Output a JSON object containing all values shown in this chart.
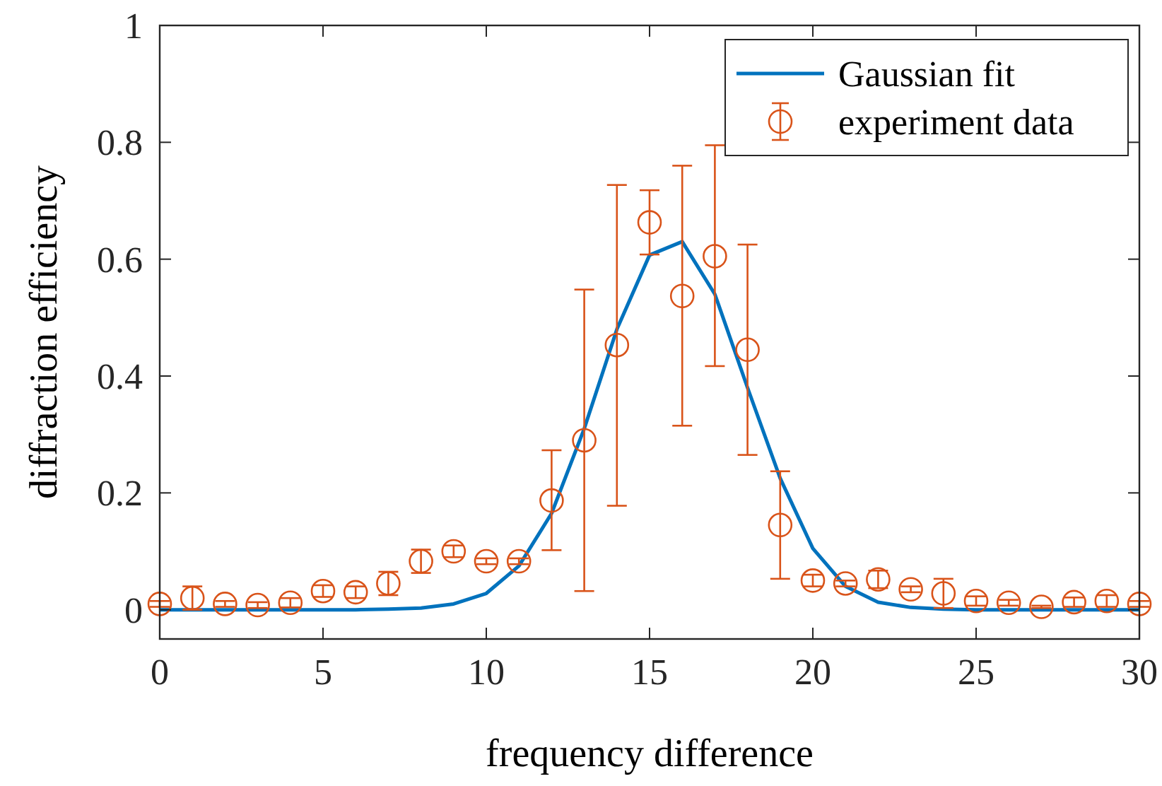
{
  "chart_data": {
    "type": "scatter",
    "xlabel": "frequency difference",
    "ylabel": "diffraction efficiency",
    "xlim": [
      0,
      30
    ],
    "xticks": [
      0,
      5,
      10,
      15,
      20,
      25,
      30
    ],
    "ylim": [
      -0.05,
      1
    ],
    "yticks": [
      0,
      0.2,
      0.4,
      0.6,
      0.8,
      1
    ],
    "legend": "top right",
    "grid": false,
    "series": [
      {
        "name": "Gaussian fit",
        "type": "line",
        "color": "#0072bd",
        "marker": "none",
        "line_style": "solid",
        "x": [
          0,
          1,
          2,
          3,
          4,
          5,
          6,
          7,
          8,
          9,
          10,
          11,
          12,
          13,
          14,
          15,
          16,
          17,
          18,
          19,
          20,
          21,
          22,
          23,
          24,
          25,
          26,
          27,
          28,
          29,
          30
        ],
        "values": [
          0,
          0,
          0,
          0,
          0,
          0,
          0,
          0.001,
          0.003,
          0.01,
          0.028,
          0.075,
          0.165,
          0.31,
          0.48,
          0.607,
          0.63,
          0.54,
          0.38,
          0.225,
          0.105,
          0.04,
          0.013,
          0.004,
          0.001,
          0,
          0,
          0,
          0,
          0,
          0
        ]
      },
      {
        "name": "experiment data",
        "color": "#d95319",
        "marker": "circle",
        "x": [
          0,
          1,
          2,
          3,
          4,
          5,
          6,
          7,
          8,
          9,
          10,
          11,
          12,
          13,
          14,
          15,
          16,
          17,
          18,
          19,
          20,
          21,
          22,
          23,
          24,
          25,
          26,
          27,
          28,
          29,
          30
        ],
        "values": [
          0.01,
          0.02,
          0.01,
          0.008,
          0.012,
          0.032,
          0.03,
          0.045,
          0.083,
          0.1,
          0.083,
          0.083,
          0.187,
          0.29,
          0.453,
          0.663,
          0.537,
          0.605,
          0.445,
          0.145,
          0.05,
          0.045,
          0.052,
          0.035,
          0.028,
          0.015,
          0.012,
          0.005,
          0.013,
          0.015,
          0.01
        ],
        "errors": [
          0.005,
          0.02,
          0.005,
          0.005,
          0.008,
          0.01,
          0.01,
          0.02,
          0.02,
          0.01,
          0.005,
          0.005,
          [
            0.102,
            0.273
          ],
          [
            0.032,
            0.548
          ],
          [
            0.178,
            0.727
          ],
          [
            0.608,
            0.718
          ],
          [
            0.315,
            0.76
          ],
          [
            0.417,
            0.795
          ],
          [
            0.265,
            0.625
          ],
          [
            0.053,
            0.237
          ],
          0.01,
          0.005,
          0.015,
          0.005,
          0.025,
          0.008,
          0.005,
          0.002,
          0.008,
          0.01,
          0.005
        ]
      }
    ]
  }
}
